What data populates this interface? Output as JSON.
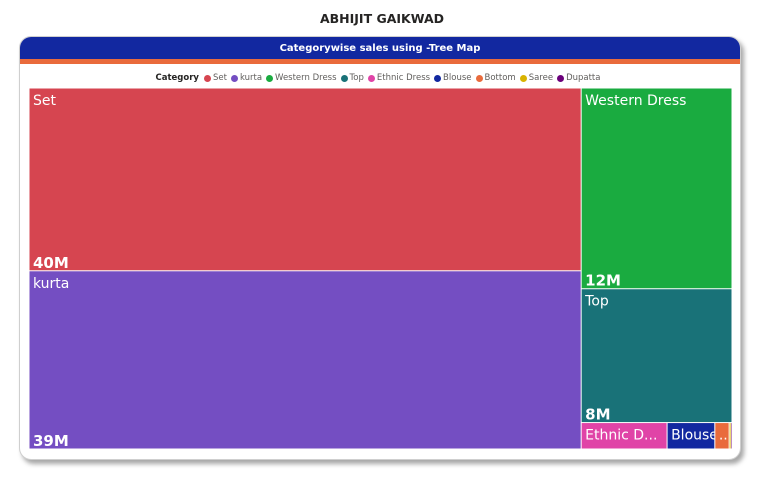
{
  "page": {
    "title": "ABHIJIT GAIKWAD"
  },
  "card": {
    "title": "Categorywise sales using -Tree Map",
    "header_color": "#1228a0",
    "accent_color": "#e96b3c"
  },
  "chart_data": {
    "type": "treemap",
    "title": "Categorywise sales using -Tree Map",
    "legend_title": "Category",
    "legend_position": "top-center",
    "values_unit": "M",
    "items": [
      {
        "name": "Set",
        "label": "Set",
        "value": 40,
        "value_label": "40M",
        "color": "#d64550"
      },
      {
        "name": "kurta",
        "label": "kurta",
        "value": 39,
        "value_label": "39M",
        "color": "#744ec2"
      },
      {
        "name": "Western Dress",
        "label": "Western Dress",
        "value": 12,
        "value_label": "12M",
        "color": "#1aab40"
      },
      {
        "name": "Top",
        "label": "Top",
        "value": 8,
        "value_label": "8M",
        "color": "#197278"
      },
      {
        "name": "Ethnic Dress",
        "label": "Ethnic D...",
        "value": 0.9,
        "value_label": "",
        "color": "#e044a7"
      },
      {
        "name": "Blouse",
        "label": "Blouse",
        "value": 0.5,
        "value_label": "",
        "color": "#1228a0"
      },
      {
        "name": "Bottom",
        "label": "...",
        "value": 0.15,
        "value_label": "",
        "color": "#e96b3c"
      },
      {
        "name": "Saree",
        "label": "",
        "value": 0.02,
        "value_label": "",
        "color": "#d9b300"
      },
      {
        "name": "Dupatta",
        "label": "",
        "value": 0.01,
        "value_label": "",
        "color": "#6b007b"
      }
    ]
  }
}
